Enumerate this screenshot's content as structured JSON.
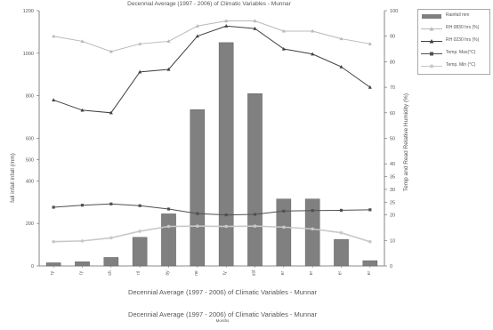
{
  "chart_data": {
    "type": "bar",
    "title": "Decennial Average (1997 - 2006) of Climatic Variables - Munnar",
    "xlabel": "Decennial Average (1997 - 2006) of Climatic Variables - Munnar",
    "ylabel": "fall infall infall (mm)",
    "y2label": "Temp and Read Relative Humidity (%)",
    "caption": "Decennial Average (1997 - 2006) of Climatic Variables - Munnar",
    "caption_sub": "Months",
    "categories": [
      "ry",
      "ry",
      "ch",
      "ril",
      "ay",
      "ne",
      "ly",
      "ust",
      "er",
      "er",
      "er",
      "er"
    ],
    "ylim": [
      0,
      1200
    ],
    "y2lim": [
      0,
      100
    ],
    "yticks": [
      "0",
      "200",
      "400",
      "500",
      "600",
      "800",
      "1000",
      "1200"
    ],
    "y2ticks": [
      "0",
      "10",
      "20",
      "25",
      "30",
      "35",
      "40",
      "50",
      "60",
      "70",
      "80",
      "90",
      "100"
    ],
    "grid": false,
    "legend_position": "top-right",
    "bars": {
      "name": "Rainfall mm",
      "color": "#808080",
      "values": [
        15,
        20,
        40,
        135,
        245,
        735,
        1050,
        810,
        315,
        315,
        125,
        25
      ]
    },
    "lines": [
      {
        "name": "RH 0830 hrs (%)",
        "color": "#b8b8b8",
        "marker": "triangle",
        "values": [
          90,
          88,
          84,
          87,
          88,
          94,
          96,
          96,
          92,
          92,
          89,
          87
        ]
      },
      {
        "name": "RH 0230 hrs (%)",
        "color": "#404040",
        "marker": "triangle",
        "values": [
          65,
          61,
          60,
          76,
          77,
          90,
          94,
          93,
          85,
          83,
          78,
          70
        ]
      },
      {
        "name": "Temp. Max(°C)",
        "color": "#505050",
        "marker": "square",
        "values": [
          23,
          23.8,
          24.3,
          23.6,
          22.3,
          20.5,
          20,
          20.2,
          21.5,
          21.7,
          21.8,
          22
        ]
      },
      {
        "name": "Temp. Min (°C)",
        "color": "#c8c8c8",
        "marker": "circle",
        "values": [
          9.5,
          9.8,
          11,
          13.6,
          15.5,
          15.6,
          15.5,
          15.6,
          15.2,
          14.5,
          13,
          9.5
        ]
      }
    ]
  }
}
